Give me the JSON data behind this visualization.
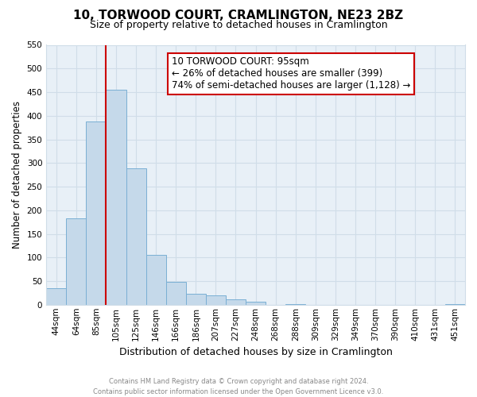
{
  "title": "10, TORWOOD COURT, CRAMLINGTON, NE23 2BZ",
  "subtitle": "Size of property relative to detached houses in Cramlington",
  "xlabel": "Distribution of detached houses by size in Cramlington",
  "ylabel": "Number of detached properties",
  "footnote1": "Contains HM Land Registry data © Crown copyright and database right 2024.",
  "footnote2": "Contains public sector information licensed under the Open Government Licence v3.0.",
  "bar_labels": [
    "44sqm",
    "64sqm",
    "85sqm",
    "105sqm",
    "125sqm",
    "146sqm",
    "166sqm",
    "186sqm",
    "207sqm",
    "227sqm",
    "248sqm",
    "268sqm",
    "288sqm",
    "309sqm",
    "329sqm",
    "349sqm",
    "370sqm",
    "390sqm",
    "410sqm",
    "431sqm",
    "451sqm"
  ],
  "bar_values": [
    35,
    183,
    387,
    455,
    289,
    105,
    49,
    23,
    19,
    11,
    6,
    0,
    1,
    0,
    0,
    0,
    0,
    0,
    0,
    0,
    1
  ],
  "bar_color": "#c5d9ea",
  "bar_edge_color": "#7aafd4",
  "property_label": "10 TORWOOD COURT: 95sqm",
  "annotation_line1": "← 26% of detached houses are smaller (399)",
  "annotation_line2": "74% of semi-detached houses are larger (1,128) →",
  "annotation_box_color": "#ffffff",
  "annotation_box_edge": "#cc0000",
  "vline_color": "#cc0000",
  "ylim": [
    0,
    550
  ],
  "yticks": [
    0,
    50,
    100,
    150,
    200,
    250,
    300,
    350,
    400,
    450,
    500,
    550
  ],
  "grid_color": "#d0dde8",
  "plot_bg_color": "#e8f0f7",
  "fig_bg_color": "#ffffff",
  "title_fontsize": 11,
  "subtitle_fontsize": 9,
  "ylabel_fontsize": 8.5,
  "xlabel_fontsize": 9,
  "tick_fontsize": 7.5,
  "annot_fontsize": 8.5,
  "footnote_fontsize": 6
}
